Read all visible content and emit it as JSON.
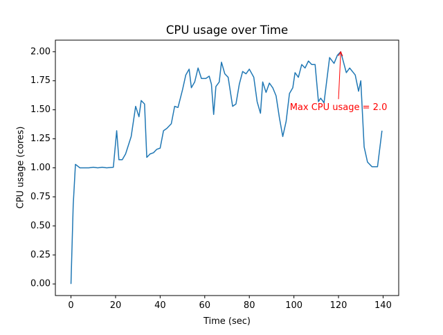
{
  "chart_data": {
    "type": "line",
    "title": "CPU usage over Time",
    "x_label": "Time (sec)",
    "y_label": "CPU usage (cores)",
    "series": [
      {
        "name": "CPU usage",
        "color": "#1f77b4",
        "x": [
          0,
          1,
          2,
          4,
          6,
          8,
          10,
          12,
          14,
          16,
          19,
          20.5,
          21.5,
          23,
          24.5,
          27,
          29,
          30.5,
          31.5,
          33,
          34,
          35.5,
          37,
          38.5,
          40,
          41.5,
          43,
          45,
          46.5,
          48,
          50,
          51.5,
          53,
          54,
          55.5,
          57,
          58.5,
          60.5,
          62,
          63,
          64,
          65,
          66.5,
          67.5,
          69,
          70.5,
          72.5,
          74,
          75.5,
          77,
          78.5,
          80,
          82,
          83.5,
          85,
          86,
          87.5,
          89,
          90.5,
          92,
          93.5,
          95,
          96.5,
          98,
          99.5,
          100.5,
          102,
          103.5,
          105,
          106.5,
          108,
          109.5,
          111,
          112,
          113.5,
          116,
          118,
          119.5,
          121,
          123.5,
          125,
          127.5,
          129,
          130,
          131.5,
          133,
          135,
          137.5,
          139.5
        ],
        "values": [
          0.0,
          0.68,
          1.03,
          1.0,
          1.0,
          1.0,
          1.005,
          1.0,
          1.005,
          1.0,
          1.005,
          1.32,
          1.07,
          1.07,
          1.12,
          1.27,
          1.53,
          1.44,
          1.58,
          1.55,
          1.09,
          1.12,
          1.13,
          1.16,
          1.17,
          1.32,
          1.34,
          1.38,
          1.53,
          1.52,
          1.67,
          1.8,
          1.85,
          1.69,
          1.74,
          1.86,
          1.77,
          1.77,
          1.79,
          1.72,
          1.46,
          1.7,
          1.74,
          1.91,
          1.81,
          1.78,
          1.53,
          1.55,
          1.72,
          1.83,
          1.81,
          1.85,
          1.78,
          1.57,
          1.47,
          1.74,
          1.65,
          1.73,
          1.69,
          1.62,
          1.43,
          1.27,
          1.4,
          1.64,
          1.69,
          1.82,
          1.78,
          1.89,
          1.86,
          1.92,
          1.89,
          1.89,
          1.57,
          1.6,
          1.56,
          1.95,
          1.9,
          1.97,
          2.0,
          1.82,
          1.86,
          1.8,
          1.66,
          1.75,
          1.18,
          1.05,
          1.01,
          1.01,
          1.32
        ]
      }
    ],
    "xlim": [
      -7,
      147
    ],
    "ylim": [
      -0.1,
      2.1
    ],
    "xticks": [
      0,
      20,
      40,
      60,
      80,
      100,
      120,
      140
    ],
    "yticks": [
      {
        "value": 0,
        "label": "0.00"
      },
      0.25,
      {
        "value": 0.5,
        "label": "0.50"
      },
      0.75,
      {
        "value": 1,
        "label": "1.00"
      },
      1.25,
      {
        "value": 1.5,
        "label": "1.50"
      },
      1.75,
      {
        "value": 2,
        "label": "2.00"
      }
    ],
    "annotations": [
      {
        "text": "Max CPU usage = 2.0",
        "xy": [
          121,
          2.0
        ],
        "xytext": [
          120,
          1.52
        ],
        "color": "red"
      }
    ]
  }
}
